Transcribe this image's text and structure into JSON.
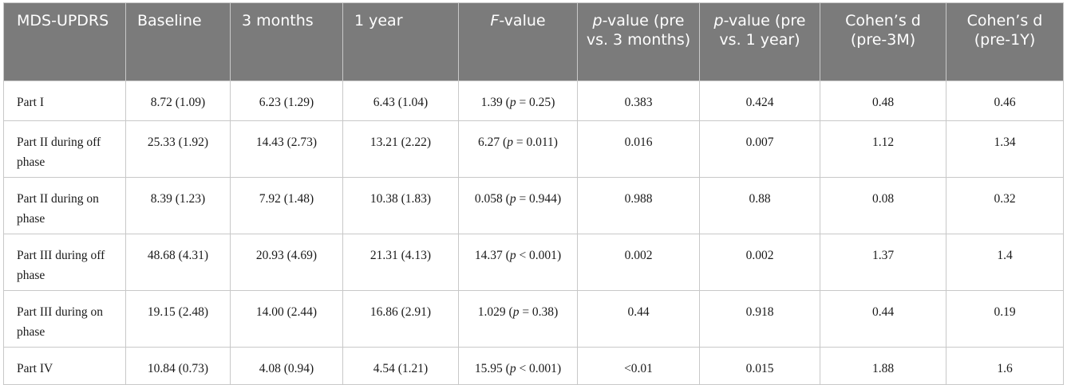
{
  "table": {
    "headers": [
      {
        "text": "MDS-UPDRS"
      },
      {
        "text": "Baseline"
      },
      {
        "text": "3 months"
      },
      {
        "text": "1 year"
      },
      {
        "italic": "F",
        "text": "-value"
      },
      {
        "italic": "p",
        "text": "-value (pre vs. 3 months)"
      },
      {
        "italic": "p",
        "text": "-value (pre vs. 1 year)"
      },
      {
        "text": "Cohen’s d (pre-3M)"
      },
      {
        "text": "Cohen’s d (pre-1Y)"
      }
    ],
    "rows": [
      {
        "label": "Part I",
        "baseline": "8.72 (1.09)",
        "m3": "6.23 (1.29)",
        "y1": "6.43 (1.04)",
        "f_val": "1.39",
        "f_p": "= 0.25",
        "p3": "0.383",
        "p1": "0.424",
        "d3": "0.48",
        "d1": "0.46"
      },
      {
        "label": "Part II during off phase",
        "baseline": "25.33 (1.92)",
        "m3": "14.43 (2.73)",
        "y1": "13.21 (2.22)",
        "f_val": "6.27",
        "f_p": "= 0.011",
        "p3": "0.016",
        "p1": "0.007",
        "d3": "1.12",
        "d1": "1.34"
      },
      {
        "label": "Part II during on phase",
        "baseline": "8.39 (1.23)",
        "m3": "7.92 (1.48)",
        "y1": "10.38 (1.83)",
        "f_val": "0.058",
        "f_p": "= 0.944",
        "p3": "0.988",
        "p1": "0.88",
        "d3": "0.08",
        "d1": "0.32"
      },
      {
        "label": "Part III during off phase",
        "baseline": "48.68 (4.31)",
        "m3": "20.93 (4.69)",
        "y1": "21.31 (4.13)",
        "f_val": "14.37",
        "f_p": "< 0.001",
        "p3": "0.002",
        "p1": "0.002",
        "d3": "1.37",
        "d1": "1.4"
      },
      {
        "label": "Part III during on phase",
        "baseline": "19.15 (2.48)",
        "m3": "14.00 (2.44)",
        "y1": "16.86 (2.91)",
        "f_val": "1.029",
        "f_p": "= 0.38",
        "p3": "0.44",
        "p1": "0.918",
        "d3": "0.44",
        "d1": "0.19"
      },
      {
        "label": "Part IV",
        "baseline": "10.84 (0.73)",
        "m3": "4.08 (0.94)",
        "y1": "4.54 (1.21)",
        "f_val": "15.95",
        "f_p": "< 0.001",
        "p3": "<0.01",
        "p1": "0.015",
        "d3": "1.88",
        "d1": "1.6"
      }
    ]
  },
  "italic_p": "p"
}
